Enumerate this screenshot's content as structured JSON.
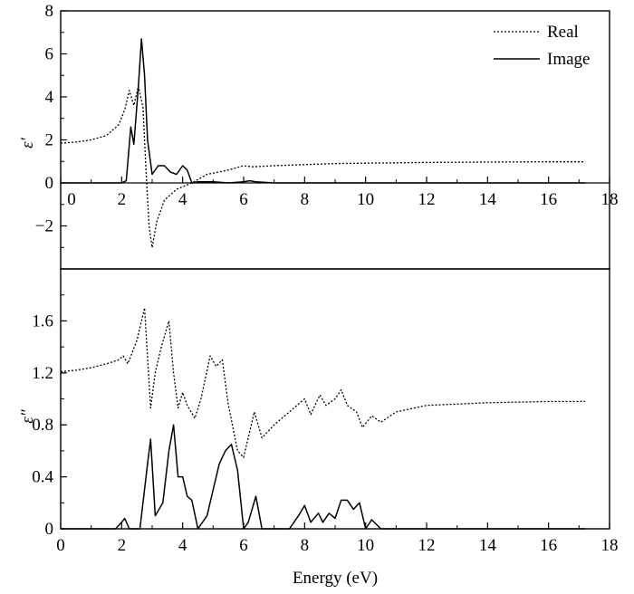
{
  "chart_data": [
    {
      "type": "line",
      "panel": "top",
      "ylabel": "ε′",
      "xlim": [
        0,
        18
      ],
      "ylim": [
        -4,
        8
      ],
      "x_ticks": [
        "0",
        "2",
        "4",
        "6",
        "8",
        "10",
        "12",
        "14",
        "16",
        "18"
      ],
      "y_ticks": [
        "−2",
        "0",
        "2",
        "4",
        "6",
        "8"
      ],
      "legend": {
        "placement": "top-right",
        "entries": [
          "Real",
          "Image"
        ]
      },
      "series": [
        {
          "name": "Real",
          "style": "dotted",
          "x": [
            0,
            0.5,
            1.0,
            1.5,
            1.9,
            2.1,
            2.25,
            2.4,
            2.55,
            2.7,
            2.8,
            2.9,
            3.0,
            3.15,
            3.4,
            3.8,
            4.3,
            4.8,
            5.5,
            6.0,
            6.3,
            7,
            8,
            9,
            10,
            12,
            14,
            16,
            17.2
          ],
          "y": [
            1.85,
            1.9,
            2.0,
            2.2,
            2.7,
            3.4,
            4.3,
            3.6,
            4.5,
            3.5,
            0.5,
            -2.0,
            -3.0,
            -1.8,
            -0.8,
            -0.3,
            0.0,
            0.4,
            0.6,
            0.8,
            0.75,
            0.8,
            0.85,
            0.9,
            0.92,
            0.95,
            0.97,
            0.98,
            0.98
          ]
        },
        {
          "name": "Image",
          "style": "solid",
          "x": [
            0,
            2.0,
            2.15,
            2.3,
            2.4,
            2.55,
            2.65,
            2.75,
            2.85,
            3.0,
            3.2,
            3.4,
            3.6,
            3.8,
            4.0,
            4.15,
            4.3,
            4.5,
            5.0,
            5.5,
            6.0,
            6.2,
            6.4,
            7,
            8,
            9,
            10,
            12,
            14,
            16,
            17.2
          ],
          "y": [
            0,
            0,
            0.1,
            2.6,
            1.8,
            4.5,
            6.7,
            5.0,
            2.0,
            0.4,
            0.8,
            0.8,
            0.5,
            0.4,
            0.8,
            0.6,
            0.0,
            0.05,
            0.05,
            0.0,
            0.05,
            0.1,
            0.05,
            0.0,
            0.0,
            0.0,
            0.0,
            0.0,
            0.0,
            0.0,
            0.0
          ]
        }
      ]
    },
    {
      "type": "line",
      "panel": "bottom",
      "xlabel": "Energy (eV)",
      "ylabel": "ε″",
      "xlim": [
        0,
        18
      ],
      "ylim": [
        0,
        2.0
      ],
      "x_ticks": [
        "0",
        "2",
        "4",
        "6",
        "8",
        "10",
        "12",
        "14",
        "16",
        "18"
      ],
      "y_ticks": [
        "0",
        "0.4",
        "0.8",
        "1.2",
        "1.6"
      ],
      "series": [
        {
          "style": "dotted",
          "x": [
            0,
            0.5,
            1.0,
            1.5,
            1.9,
            2.05,
            2.2,
            2.5,
            2.75,
            2.95,
            3.1,
            3.3,
            3.55,
            3.7,
            3.85,
            4.0,
            4.15,
            4.4,
            4.6,
            4.9,
            5.1,
            5.3,
            5.5,
            5.8,
            6.0,
            6.2,
            6.35,
            6.6,
            7.0,
            7.5,
            8.0,
            8.2,
            8.5,
            8.7,
            9.0,
            9.2,
            9.4,
            9.7,
            9.9,
            10.2,
            10.5,
            11,
            12,
            14,
            16,
            17.2
          ],
          "y": [
            1.21,
            1.22,
            1.24,
            1.27,
            1.3,
            1.33,
            1.27,
            1.45,
            1.7,
            0.93,
            1.2,
            1.4,
            1.6,
            1.2,
            0.93,
            1.05,
            0.95,
            0.85,
            1.0,
            1.33,
            1.25,
            1.3,
            0.95,
            0.6,
            0.55,
            0.75,
            0.9,
            0.7,
            0.8,
            0.9,
            1.0,
            0.88,
            1.03,
            0.95,
            1.0,
            1.07,
            0.95,
            0.9,
            0.78,
            0.87,
            0.82,
            0.9,
            0.95,
            0.97,
            0.98,
            0.98
          ]
        },
        {
          "style": "solid",
          "x": [
            0,
            1.8,
            2.0,
            2.1,
            2.25,
            2.6,
            2.85,
            2.95,
            3.1,
            3.35,
            3.55,
            3.7,
            3.85,
            4.0,
            4.15,
            4.3,
            4.5,
            4.8,
            5.0,
            5.2,
            5.4,
            5.6,
            5.8,
            6.0,
            6.15,
            6.4,
            6.6,
            7.0,
            7.5,
            7.8,
            8.0,
            8.2,
            8.45,
            8.6,
            8.8,
            9.0,
            9.2,
            9.4,
            9.6,
            9.8,
            10.0,
            10.2,
            10.5,
            11,
            12,
            14,
            16,
            17.2
          ],
          "y": [
            0,
            0,
            0.05,
            0.08,
            0.0,
            0.0,
            0.5,
            0.69,
            0.1,
            0.2,
            0.6,
            0.8,
            0.4,
            0.4,
            0.25,
            0.22,
            0.0,
            0.1,
            0.3,
            0.5,
            0.6,
            0.65,
            0.45,
            0.0,
            0.05,
            0.25,
            0.0,
            0.0,
            0.0,
            0.1,
            0.18,
            0.05,
            0.12,
            0.05,
            0.12,
            0.08,
            0.22,
            0.22,
            0.15,
            0.2,
            0.0,
            0.07,
            0.0,
            0.0,
            0.0,
            0.0,
            0.0,
            0.0
          ]
        }
      ]
    }
  ]
}
